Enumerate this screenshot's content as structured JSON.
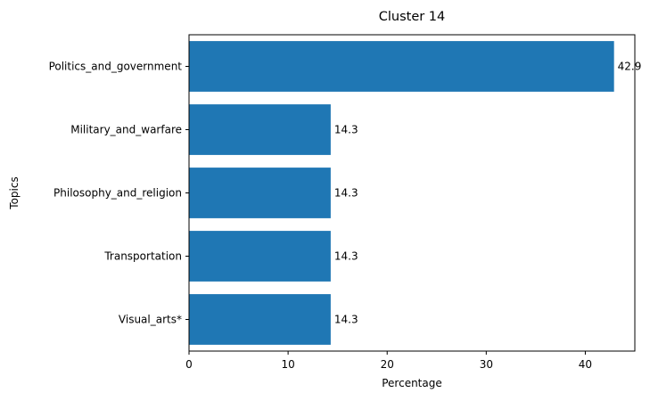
{
  "chart_data": {
    "type": "bar",
    "orientation": "horizontal",
    "title": "Cluster 14",
    "xlabel": "Percentage",
    "ylabel": "Topics",
    "categories": [
      "Politics_and_government",
      "Military_and_warfare",
      "Philosophy_and_religion",
      "Transportation",
      "Visual_arts*"
    ],
    "values": [
      42.9,
      14.3,
      14.3,
      14.3,
      14.3
    ],
    "data_labels": [
      "42.9",
      "14.3",
      "14.3",
      "14.3",
      "14.3"
    ],
    "xlim": [
      0,
      45
    ],
    "xticks": [
      0,
      10,
      20,
      30,
      40
    ],
    "grid": false,
    "legend": "none"
  },
  "colors": {
    "bar": "#1f77b4",
    "axis": "#000000",
    "background": "#ffffff"
  }
}
